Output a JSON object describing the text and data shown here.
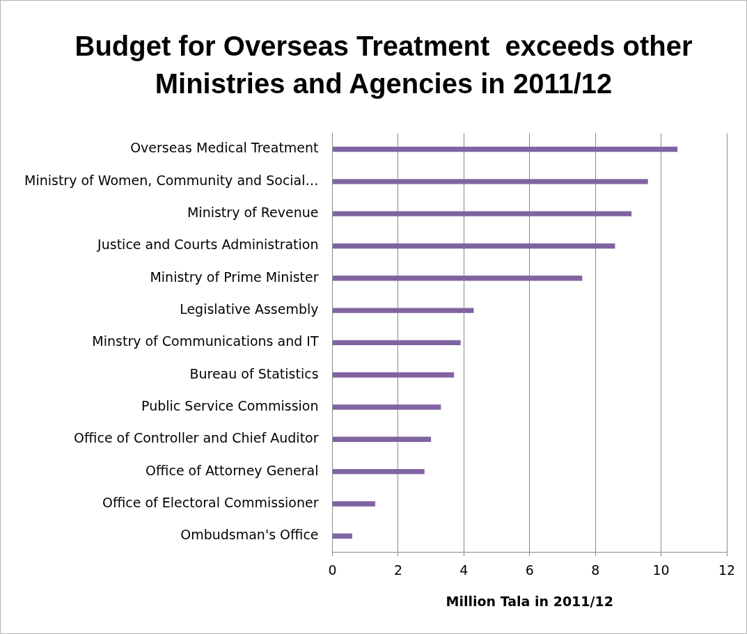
{
  "chart_data": {
    "type": "bar",
    "orientation": "horizontal",
    "title": "Budget for Overseas Treatment  exceeds other Ministries and Agencies in 2011/12",
    "xlabel": "Million Tala in 2011/12",
    "categories": [
      "Overseas Medical Treatment",
      "Ministry of Women, Community and Social…",
      "Ministry of Revenue",
      "Justice and Courts Administration",
      "Ministry of Prime Minister",
      "Legislative Assembly",
      "Minstry of Communications and IT",
      "Bureau of Statistics",
      "Public Service Commission",
      "Office of Controller and Chief Auditor",
      "Office of Attorney General",
      "Office of Electoral Commissioner",
      "Ombudsman's Office"
    ],
    "values": [
      10.5,
      9.6,
      9.1,
      8.6,
      7.6,
      4.3,
      3.9,
      3.7,
      3.3,
      3.0,
      2.8,
      1.3,
      0.6
    ],
    "color": "#8064a2",
    "xlim": [
      0,
      12
    ],
    "xticks": [
      0,
      2,
      4,
      6,
      8,
      10,
      12
    ],
    "grid": "x",
    "legend": false
  }
}
